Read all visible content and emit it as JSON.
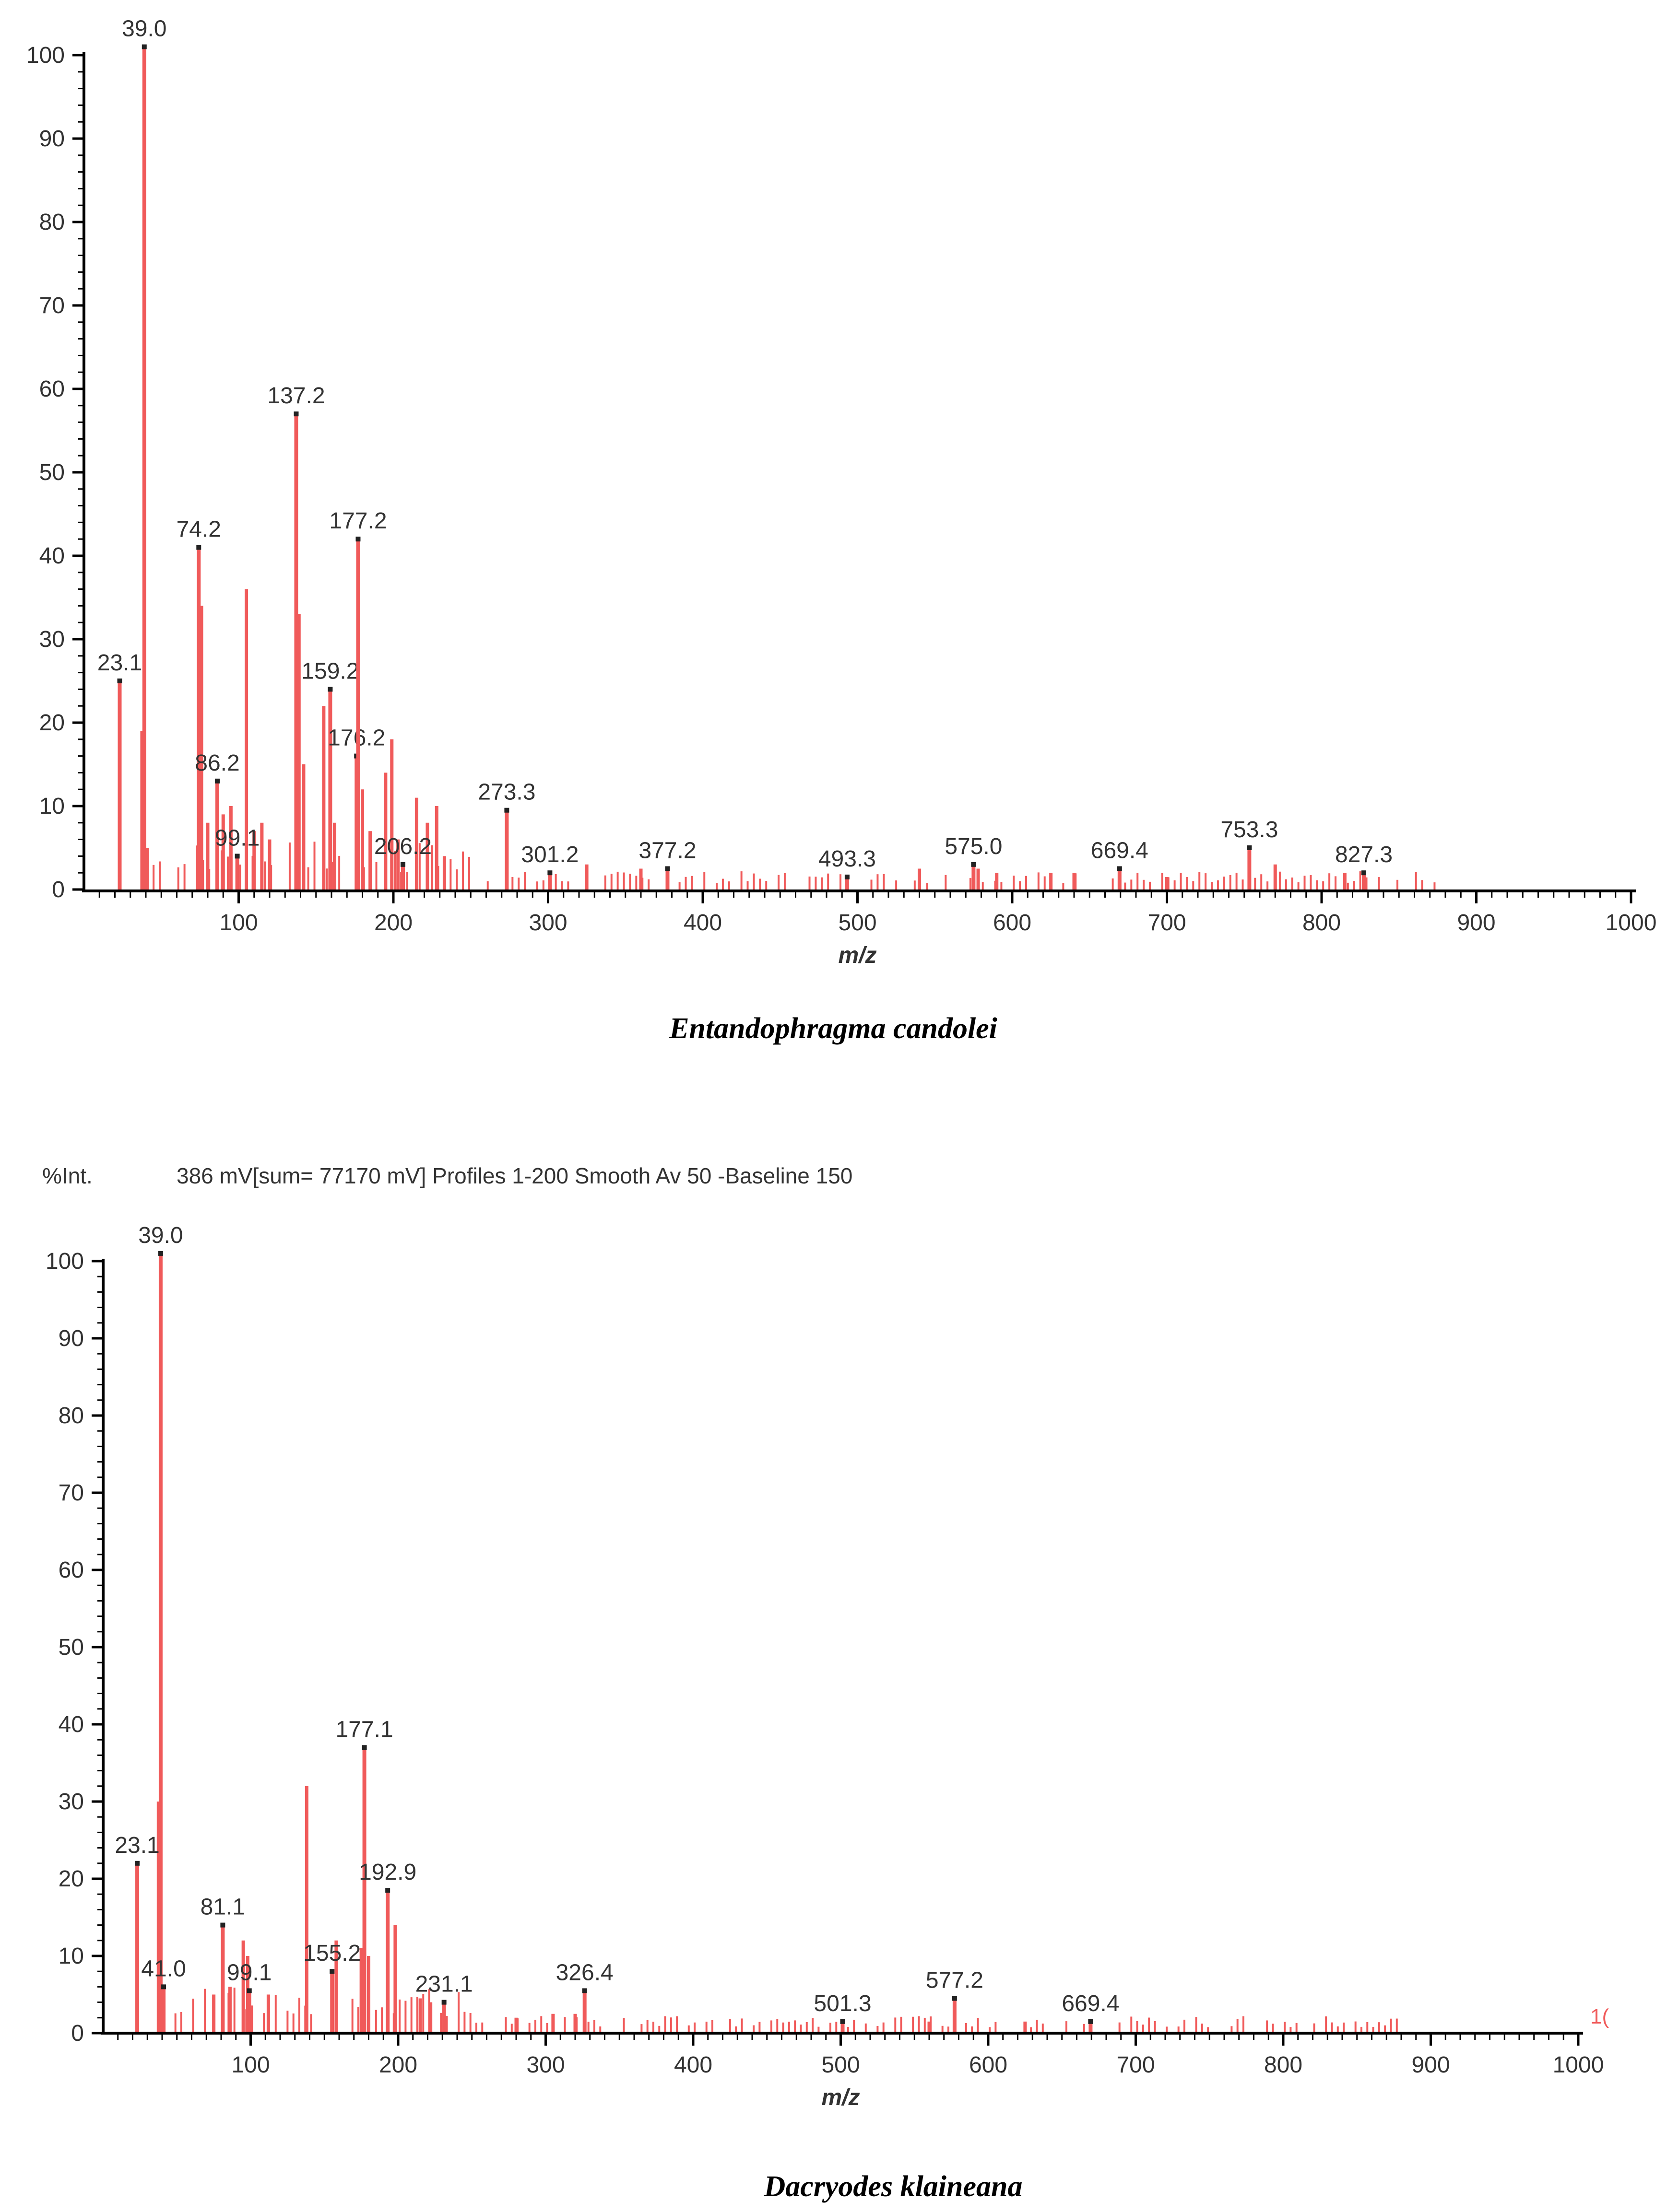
{
  "colors": {
    "peak": "#f05a5a",
    "axis": "#000000",
    "text": "#333333"
  },
  "chart_data": [
    {
      "type": "bar",
      "title": "Entandophragma candolei",
      "xlabel": "m/z",
      "ylabel": "",
      "xlim": [
        0,
        1000
      ],
      "ylim": [
        0,
        100
      ],
      "x_ticks": [
        100,
        200,
        300,
        400,
        500,
        600,
        700,
        800,
        900,
        1000
      ],
      "x_tick_labels": [
        "100",
        "200",
        "300",
        "400",
        "500",
        "600",
        "700",
        "800",
        "900",
        "1000"
      ],
      "y_ticks": [
        0,
        10,
        20,
        30,
        40,
        50,
        60,
        70,
        80,
        90,
        100
      ],
      "y_tick_labels": [
        "0",
        "10",
        "20",
        "30",
        "40",
        "50",
        "60",
        "70",
        "80",
        "90",
        "100"
      ],
      "labeled_peaks": [
        {
          "mz": 23.1,
          "intensity": 25,
          "label": "23.1"
        },
        {
          "mz": 39.0,
          "intensity": 101,
          "label": "39.0"
        },
        {
          "mz": 74.2,
          "intensity": 41,
          "label": "74.2"
        },
        {
          "mz": 86.2,
          "intensity": 13,
          "label": "86.2"
        },
        {
          "mz": 99.1,
          "intensity": 4,
          "label": "99.1"
        },
        {
          "mz": 137.2,
          "intensity": 57,
          "label": "137.2"
        },
        {
          "mz": 159.2,
          "intensity": 24,
          "label": "159.2"
        },
        {
          "mz": 176.2,
          "intensity": 16,
          "label": "176.2"
        },
        {
          "mz": 177.2,
          "intensity": 42,
          "label": "177.2"
        },
        {
          "mz": 206.2,
          "intensity": 3,
          "label": "206.2"
        },
        {
          "mz": 273.3,
          "intensity": 9.5,
          "label": "273.3"
        },
        {
          "mz": 301.2,
          "intensity": 2,
          "label": "301.2"
        },
        {
          "mz": 377.2,
          "intensity": 2.5,
          "label": "377.2"
        },
        {
          "mz": 493.3,
          "intensity": 1.5,
          "label": "493.3"
        },
        {
          "mz": 575.0,
          "intensity": 3,
          "label": "575.0"
        },
        {
          "mz": 669.4,
          "intensity": 2.5,
          "label": "669.4"
        },
        {
          "mz": 753.3,
          "intensity": 5,
          "label": "753.3"
        },
        {
          "mz": 827.3,
          "intensity": 2,
          "label": "827.3"
        }
      ],
      "other_peaks": [
        {
          "mz": 37.5,
          "intensity": 19
        },
        {
          "mz": 41,
          "intensity": 5
        },
        {
          "mz": 76,
          "intensity": 34
        },
        {
          "mz": 80,
          "intensity": 8
        },
        {
          "mz": 90,
          "intensity": 9
        },
        {
          "mz": 95,
          "intensity": 10
        },
        {
          "mz": 105,
          "intensity": 36
        },
        {
          "mz": 110,
          "intensity": 7
        },
        {
          "mz": 115,
          "intensity": 8
        },
        {
          "mz": 120,
          "intensity": 6
        },
        {
          "mz": 139,
          "intensity": 33
        },
        {
          "mz": 142,
          "intensity": 15
        },
        {
          "mz": 155,
          "intensity": 22
        },
        {
          "mz": 162,
          "intensity": 8
        },
        {
          "mz": 180,
          "intensity": 12
        },
        {
          "mz": 185,
          "intensity": 7
        },
        {
          "mz": 195,
          "intensity": 14
        },
        {
          "mz": 199,
          "intensity": 18
        },
        {
          "mz": 203,
          "intensity": 6
        },
        {
          "mz": 215,
          "intensity": 11
        },
        {
          "mz": 222,
          "intensity": 8
        },
        {
          "mz": 228,
          "intensity": 10
        },
        {
          "mz": 233,
          "intensity": 4
        },
        {
          "mz": 325,
          "intensity": 3
        },
        {
          "mz": 360,
          "intensity": 2.5
        },
        {
          "mz": 540,
          "intensity": 2.5
        },
        {
          "mz": 578,
          "intensity": 2.5
        },
        {
          "mz": 590,
          "intensity": 2
        },
        {
          "mz": 625,
          "intensity": 2
        },
        {
          "mz": 640,
          "intensity": 2
        },
        {
          "mz": 700,
          "intensity": 1.5
        },
        {
          "mz": 770,
          "intensity": 3
        },
        {
          "mz": 815,
          "intensity": 2
        }
      ]
    },
    {
      "type": "bar",
      "title": "Dacryodes klaineana",
      "header": {
        "y_unit": "%Int.",
        "info": "386 mV[sum= 77170 mV]  Profiles 1-200 Smooth Av 50 -Baseline 150"
      },
      "xlabel": "m/z",
      "ylabel": "",
      "xlim": [
        0,
        1000
      ],
      "ylim": [
        0,
        100
      ],
      "x_ticks": [
        100,
        200,
        300,
        400,
        500,
        600,
        700,
        800,
        900,
        1000
      ],
      "x_tick_labels": [
        "100",
        "200",
        "300",
        "400",
        "500",
        "600",
        "700",
        "800",
        "900",
        "1000"
      ],
      "y_ticks": [
        0,
        10,
        20,
        30,
        40,
        50,
        60,
        70,
        80,
        90,
        100
      ],
      "y_tick_labels": [
        "0",
        "10",
        "20",
        "30",
        "40",
        "50",
        "60",
        "70",
        "80",
        "90",
        "100"
      ],
      "axis_end_label": "1(",
      "labeled_peaks": [
        {
          "mz": 23.1,
          "intensity": 22,
          "label": "23.1"
        },
        {
          "mz": 39.0,
          "intensity": 101,
          "label": "39.0"
        },
        {
          "mz": 41.0,
          "intensity": 6,
          "label": "41.0"
        },
        {
          "mz": 81.1,
          "intensity": 14,
          "label": "81.1"
        },
        {
          "mz": 99.1,
          "intensity": 5.5,
          "label": "99.1"
        },
        {
          "mz": 155.2,
          "intensity": 8,
          "label": "155.2"
        },
        {
          "mz": 177.1,
          "intensity": 37,
          "label": "177.1"
        },
        {
          "mz": 192.9,
          "intensity": 18.5,
          "label": "192.9"
        },
        {
          "mz": 231.1,
          "intensity": 4,
          "label": "231.1"
        },
        {
          "mz": 326.4,
          "intensity": 5.5,
          "label": "326.4"
        },
        {
          "mz": 501.3,
          "intensity": 1.5,
          "label": "501.3"
        },
        {
          "mz": 577.2,
          "intensity": 4.5,
          "label": "577.2"
        },
        {
          "mz": 669.4,
          "intensity": 1.5,
          "label": "669.4"
        }
      ],
      "other_peaks": [
        {
          "mz": 37.5,
          "intensity": 30
        },
        {
          "mz": 75,
          "intensity": 5
        },
        {
          "mz": 86,
          "intensity": 6
        },
        {
          "mz": 95,
          "intensity": 12
        },
        {
          "mz": 98,
          "intensity": 10
        },
        {
          "mz": 112,
          "intensity": 5
        },
        {
          "mz": 138,
          "intensity": 32
        },
        {
          "mz": 158,
          "intensity": 12
        },
        {
          "mz": 175,
          "intensity": 11
        },
        {
          "mz": 180,
          "intensity": 10
        },
        {
          "mz": 198,
          "intensity": 14
        },
        {
          "mz": 215,
          "intensity": 4.5
        },
        {
          "mz": 222,
          "intensity": 4
        },
        {
          "mz": 280,
          "intensity": 2
        },
        {
          "mz": 305,
          "intensity": 2.5
        },
        {
          "mz": 320,
          "intensity": 2.5
        },
        {
          "mz": 560,
          "intensity": 1.5
        },
        {
          "mz": 625,
          "intensity": 1.5
        }
      ]
    }
  ]
}
